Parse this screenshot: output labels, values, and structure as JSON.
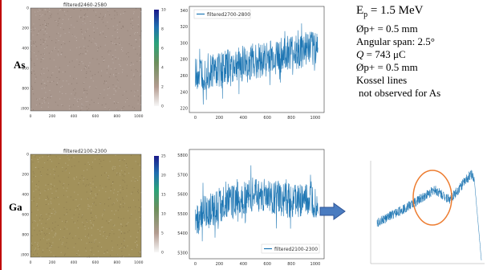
{
  "row_labels": {
    "as": "As",
    "ga": "Ga"
  },
  "info": {
    "energy": "E",
    "energy_sub": "p",
    "energy_value": " = 1.5 MeV",
    "diam1": "Øp+ = 0.5 mm",
    "span": "Angular span: 2.5°",
    "charge_sym": "Q",
    "charge_value": " = 743 μC",
    "diam2": "Øp+ = 0.5 mm",
    "kossel1": "Kossel lines",
    "kossel2": "not observed for As"
  },
  "colors": {
    "as_map": "#a8968c",
    "ga_map": "#a2915a",
    "series": "#1f77b4",
    "ellipse": "#ed7d31",
    "arrow": "#4a7cc0"
  },
  "chart_data": [
    {
      "type": "heatmap",
      "title": "filtered2460-2580",
      "xticks": [
        "0",
        "200",
        "400",
        "600",
        "800",
        "1000"
      ],
      "yticks": [
        "0",
        "200",
        "400",
        "600",
        "800",
        "1000"
      ],
      "colorbar_ticks": [
        "0",
        "2",
        "4",
        "6",
        "8",
        "10"
      ],
      "xlim": [
        0,
        1024
      ],
      "ylim": [
        1024,
        0
      ],
      "clim": [
        0,
        10
      ]
    },
    {
      "type": "line",
      "series": [
        {
          "name": "filtered2700-2800"
        }
      ],
      "xticks": [
        "0",
        "200",
        "400",
        "600",
        "800",
        "1000"
      ],
      "yticks": [
        "220",
        "240",
        "260",
        "280",
        "300",
        "320",
        "340"
      ],
      "xlim": [
        -50,
        1074
      ],
      "ylim": [
        215,
        345
      ],
      "legend": "top-left",
      "trend": {
        "x": [
          0,
          1024
        ],
        "y": [
          262,
          295
        ]
      },
      "noise_amplitude": 22,
      "n_points": 1024
    },
    {
      "type": "heatmap",
      "title": "filtered2100-2300",
      "xticks": [
        "0",
        "200",
        "400",
        "600",
        "800",
        "1000"
      ],
      "yticks": [
        "0",
        "200",
        "400",
        "600",
        "800",
        "1000"
      ],
      "colorbar_ticks": [
        "0",
        "5",
        "10",
        "15",
        "20",
        "25"
      ],
      "xlim": [
        0,
        1024
      ],
      "ylim": [
        1024,
        0
      ],
      "clim": [
        0,
        25
      ]
    },
    {
      "type": "line",
      "series": [
        {
          "name": "filtered2100-2300"
        }
      ],
      "xticks": [
        "0",
        "200",
        "400",
        "600",
        "800",
        "1000"
      ],
      "yticks": [
        "5300",
        "5400",
        "5500",
        "5600",
        "5700",
        "5800"
      ],
      "xlim": [
        -50,
        1074
      ],
      "ylim": [
        5270,
        5830
      ],
      "legend": "bottom-right",
      "trend": {
        "x": [
          0,
          250,
          500,
          750,
          1024
        ],
        "y": [
          5480,
          5560,
          5600,
          5570,
          5560
        ]
      },
      "noise_amplitude": 90,
      "n_points": 1024
    },
    {
      "type": "line",
      "series": [
        {}
      ],
      "trend": {
        "x": [
          0,
          0.3,
          0.55,
          0.7,
          0.9,
          0.93,
          1.0
        ],
        "y": [
          0.38,
          0.55,
          0.72,
          0.62,
          0.88,
          0.85,
          0.0
        ]
      },
      "noise_amplitude": 0.05,
      "n_points": 600
    }
  ]
}
